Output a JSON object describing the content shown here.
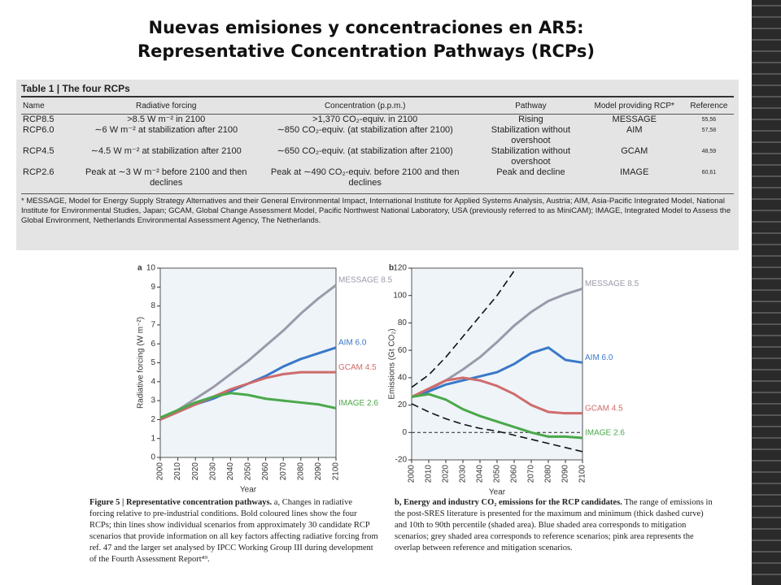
{
  "title": [
    "Nuevas emisiones y concentraciones en AR5:",
    "Representative Concentration Pathways (RCPs)"
  ],
  "table": {
    "title": "Table 1 | The four RCPs",
    "header": [
      "Name",
      "Radiative forcing",
      "Concentration (p.p.m.)",
      "Pathway",
      "Model providing RCP*",
      "Reference"
    ],
    "rows": [
      [
        "RCP8.5",
        ">8.5 W m⁻² in 2100",
        ">1,370 CO₂-equiv. in 2100",
        "Rising",
        "MESSAGE",
        "55,56"
      ],
      [
        "RCP6.0",
        "∼6 W m⁻² at stabilization after 2100",
        "∼850 CO₂-equiv. (at stabilization after 2100)",
        "Stabilization without overshoot",
        "AIM",
        "57,58"
      ],
      [
        "RCP4.5",
        "∼4.5 W m⁻² at stabilization after 2100",
        "∼650 CO₂-equiv. (at stabilization after 2100)",
        "Stabilization without overshoot",
        "GCAM",
        "48,59"
      ],
      [
        "RCP2.6",
        "Peak at ∼3 W m⁻² before 2100 and then declines",
        "Peak at ∼490 CO₂-equiv. before 2100 and then declines",
        "Peak and decline",
        "IMAGE",
        "60,61"
      ]
    ],
    "footnote": "* MESSAGE, Model for Energy Supply Strategy Alternatives and their General Environmental Impact, International Institute for Applied Systems Analysis, Austria; AIM, Asia-Pacific Integrated Model, National Institute for Environmental Studies, Japan; GCAM, Global Change Assessment Model, Pacific Northwest National Laboratory, USA (previously referred to as MiniCAM); IMAGE, Integrated Model to Assess the Global Environment, Netherlands Environmental Assessment Agency, The Netherlands."
  },
  "chart_data": [
    {
      "type": "line",
      "panel": "a",
      "ylabel": "Radiative forcing (W m⁻²)",
      "xlabel": "Year",
      "x": [
        2000,
        2010,
        2020,
        2030,
        2040,
        2050,
        2060,
        2070,
        2080,
        2090,
        2100
      ],
      "xlim": [
        2000,
        2100
      ],
      "xticks": [
        2000,
        2010,
        2020,
        2030,
        2040,
        2050,
        2060,
        2070,
        2080,
        2090,
        2100
      ],
      "ylim": [
        0,
        10
      ],
      "yticks": [
        0,
        1,
        2,
        3,
        4,
        5,
        6,
        7,
        8,
        9,
        10
      ],
      "series": [
        {
          "name": "MESSAGE 8.5",
          "color": "#9a9aaa",
          "values": [
            2.0,
            2.5,
            3.1,
            3.7,
            4.4,
            5.1,
            5.9,
            6.7,
            7.6,
            8.4,
            9.1
          ]
        },
        {
          "name": "AIM 6.0",
          "color": "#3a78c8",
          "values": [
            2.0,
            2.4,
            2.8,
            3.1,
            3.5,
            3.9,
            4.3,
            4.8,
            5.2,
            5.5,
            5.8
          ]
        },
        {
          "name": "GCAM 4.5",
          "color": "#d06b6b",
          "values": [
            2.0,
            2.4,
            2.8,
            3.2,
            3.6,
            3.9,
            4.2,
            4.4,
            4.5,
            4.5,
            4.5
          ]
        },
        {
          "name": "IMAGE 2.6",
          "color": "#4aa84a",
          "values": [
            2.1,
            2.5,
            2.9,
            3.2,
            3.4,
            3.3,
            3.1,
            3.0,
            2.9,
            2.8,
            2.6
          ]
        }
      ]
    },
    {
      "type": "line",
      "panel": "b",
      "ylabel": "Emissions (Gt CO₂)",
      "xlabel": "Year",
      "x": [
        2000,
        2010,
        2020,
        2030,
        2040,
        2050,
        2060,
        2070,
        2080,
        2090,
        2100
      ],
      "xlim": [
        2000,
        2100
      ],
      "xticks": [
        2000,
        2010,
        2020,
        2030,
        2040,
        2050,
        2060,
        2070,
        2080,
        2090,
        2100
      ],
      "ylim": [
        -20,
        120
      ],
      "yticks": [
        -20,
        0,
        20,
        40,
        60,
        80,
        100,
        120
      ],
      "series": [
        {
          "name": "MESSAGE 8.5",
          "color": "#9a9aaa",
          "values": [
            26,
            31,
            38,
            46,
            55,
            66,
            78,
            88,
            96,
            101,
            105
          ]
        },
        {
          "name": "AIM 6.0",
          "color": "#3a78c8",
          "values": [
            26,
            30,
            35,
            38,
            41,
            44,
            50,
            58,
            62,
            53,
            51
          ]
        },
        {
          "name": "GCAM 4.5",
          "color": "#d06b6b",
          "values": [
            26,
            32,
            38,
            40,
            38,
            34,
            28,
            20,
            15,
            14,
            14
          ]
        },
        {
          "name": "IMAGE 2.6",
          "color": "#4aa84a",
          "values": [
            26,
            28,
            24,
            17,
            12,
            8,
            4,
            0,
            -3,
            -3,
            -4
          ]
        },
        {
          "color": "#111111",
          "dashed": true,
          "values": [
            33,
            42,
            55,
            70,
            85,
            100,
            118,
            null,
            null,
            null,
            null
          ]
        },
        {
          "color": "#111111",
          "dashed": true,
          "values": [
            21,
            15,
            10,
            6,
            3,
            1,
            -2,
            -5,
            -8,
            -11,
            -14
          ]
        }
      ]
    }
  ],
  "captions": [
    {
      "bold": "Figure 5 | Representative concentration pathways.",
      "text": " a, Changes in radiative forcing relative to pre-industrial conditions. Bold coloured lines show the four RCPs; thin lines show individual scenarios from approximately 30 candidate RCP scenarios that provide information on all key factors affecting radiative forcing from ref. 47 and the larger set analysed by IPCC Working Group III during development of the Fourth Assessment Report⁴⁹."
    },
    {
      "bold": "b, Energy and industry CO₂ emissions for the RCP candidates.",
      "text": " The range of emissions in the post-SRES literature is presented for the maximum and minimum (thick dashed curve) and 10th to 90th percentile (shaded area). Blue shaded area corresponds to mitigation scenarios; grey shaded area corresponds to reference scenarios; pink area represents the overlap between reference and mitigation scenarios."
    }
  ]
}
